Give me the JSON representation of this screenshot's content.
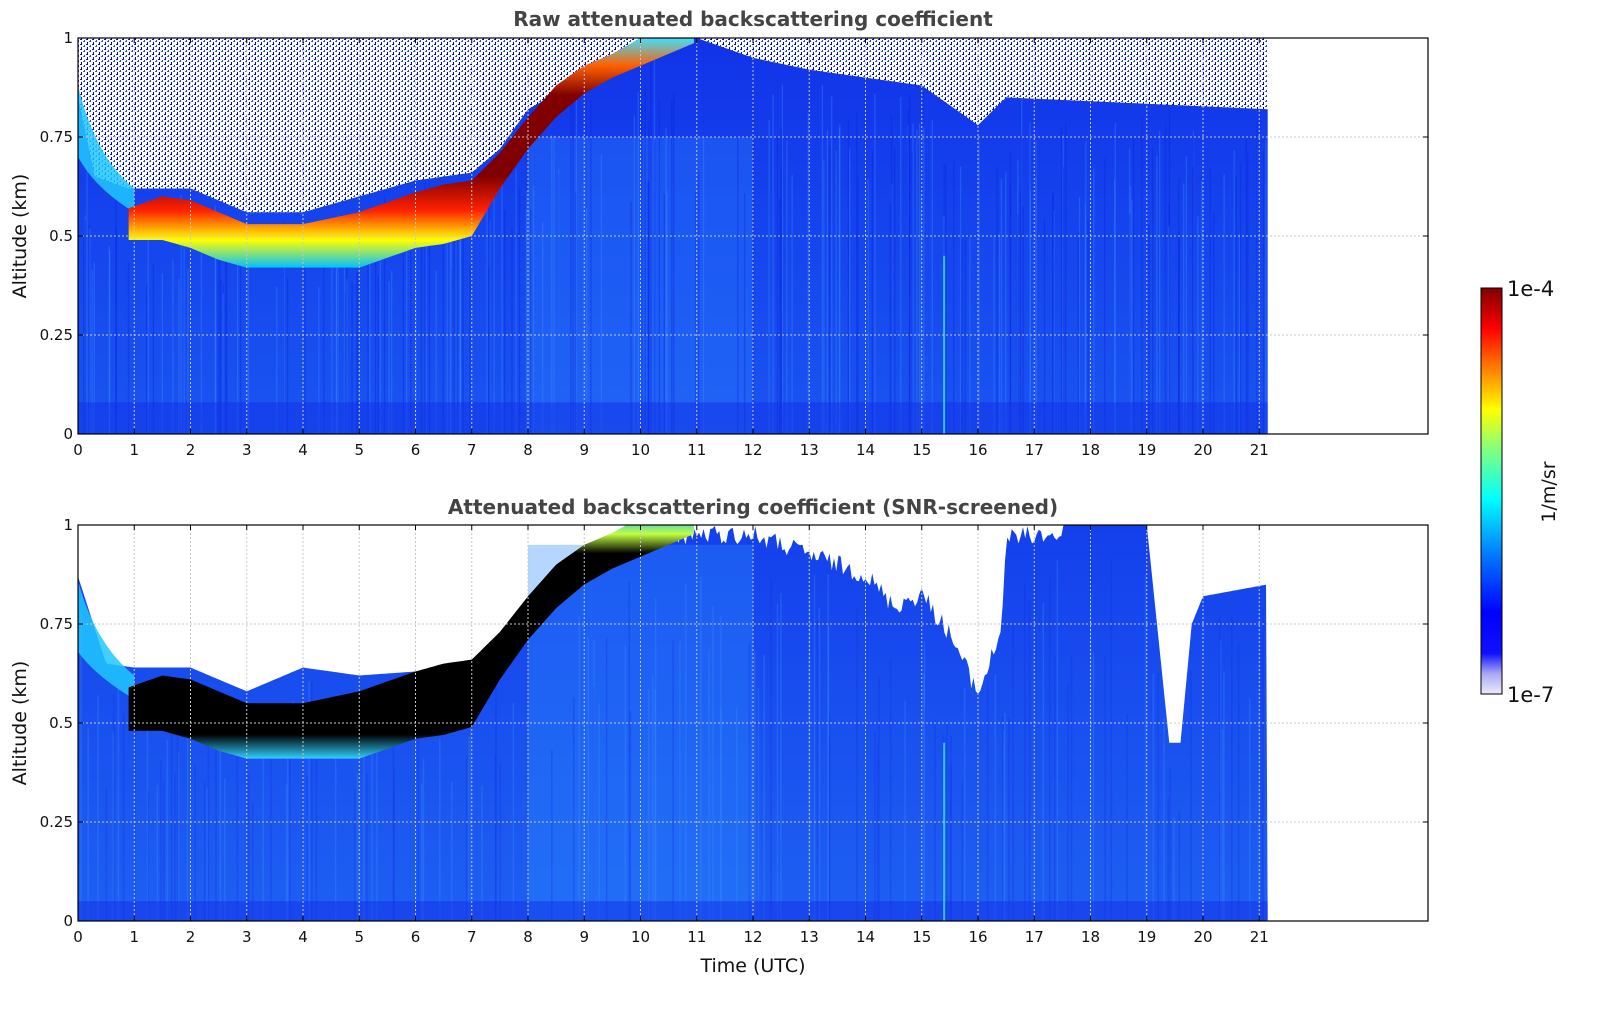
{
  "colors": {
    "colormap_jet": [
      "#00008f",
      "#0000ff",
      "#0080ff",
      "#00ffff",
      "#80ff80",
      "#ffff00",
      "#ff8000",
      "#ff0000",
      "#800000"
    ],
    "low_end": "#ecebfb",
    "saturated_screened": "#000000",
    "grid": "#c8c8c8",
    "title_text": "#444444"
  },
  "chart_data": [
    {
      "type": "heatmap",
      "title": "Raw attenuated backscattering coefficient",
      "xlabel": "",
      "ylabel": "Altitude (km)",
      "xlim": [
        0,
        24
      ],
      "ylim": [
        0,
        1
      ],
      "x_ticks": [
        "0",
        "1",
        "2",
        "3",
        "4",
        "5",
        "6",
        "7",
        "8",
        "9",
        "10",
        "11",
        "12",
        "13",
        "14",
        "15",
        "16",
        "17",
        "18",
        "19",
        "20",
        "21"
      ],
      "y_ticks": [
        "0",
        "0.25",
        "0.5",
        "0.75",
        "1"
      ],
      "data_end_time": 21.15,
      "grid": true,
      "cloud_layer": {
        "time": [
          0.9,
          1.5,
          2.0,
          2.5,
          3.0,
          4.0,
          5.0,
          6.0,
          6.5,
          7.0,
          7.5,
          8.0,
          8.5,
          9.0,
          9.5,
          10.0,
          10.5,
          11.0
        ],
        "base_km": [
          0.49,
          0.49,
          0.47,
          0.44,
          0.42,
          0.42,
          0.42,
          0.47,
          0.48,
          0.5,
          0.62,
          0.72,
          0.8,
          0.86,
          0.9,
          0.93,
          0.96,
          0.99
        ],
        "top_km": [
          0.57,
          0.6,
          0.59,
          0.56,
          0.53,
          0.53,
          0.56,
          0.61,
          0.63,
          0.64,
          0.71,
          0.8,
          0.88,
          0.93,
          0.96,
          1.0,
          1.0,
          1.0
        ]
      }
    },
    {
      "type": "heatmap",
      "title": "Attenuated backscattering coefficient (SNR-screened)",
      "xlabel": "Time (UTC)",
      "ylabel": "Altitude (km)",
      "xlim": [
        0,
        24
      ],
      "ylim": [
        0,
        1
      ],
      "x_ticks": [
        "0",
        "1",
        "2",
        "3",
        "4",
        "5",
        "6",
        "7",
        "8",
        "9",
        "10",
        "11",
        "12",
        "13",
        "14",
        "15",
        "16",
        "17",
        "18",
        "19",
        "20",
        "21"
      ],
      "y_ticks": [
        "0",
        "0.25",
        "0.5",
        "0.75",
        "1"
      ],
      "data_end_time": 21.15,
      "grid": true,
      "valid_data_top": {
        "time": [
          0,
          0.5,
          1.0,
          2.0,
          3.0,
          4.0,
          5.0,
          6.0,
          7.0,
          7.5,
          8.0,
          9.0,
          9.5,
          10.0,
          11.0,
          12.0,
          13.0,
          14.0,
          14.5,
          15.0,
          15.5,
          16.0,
          16.4,
          16.5,
          17.0,
          18.0,
          19.0,
          19.4,
          19.6,
          19.8,
          20.0,
          21.15
        ],
        "altitude_km": [
          0.87,
          0.65,
          0.64,
          0.64,
          0.58,
          0.64,
          0.62,
          0.63,
          0.66,
          0.72,
          0.82,
          0.92,
          0.98,
          1.0,
          1.0,
          1.0,
          0.95,
          0.9,
          0.82,
          0.85,
          0.75,
          0.6,
          0.75,
          0.99,
          1.0,
          1.0,
          1.0,
          0.45,
          0.45,
          0.75,
          0.82,
          0.85
        ]
      }
    }
  ],
  "colorbar": {
    "max_label": "1e-4",
    "min_label": "1e-7",
    "unit_label": "1/m/sr",
    "scale": "log",
    "range": [
      1e-07,
      0.0001
    ]
  }
}
